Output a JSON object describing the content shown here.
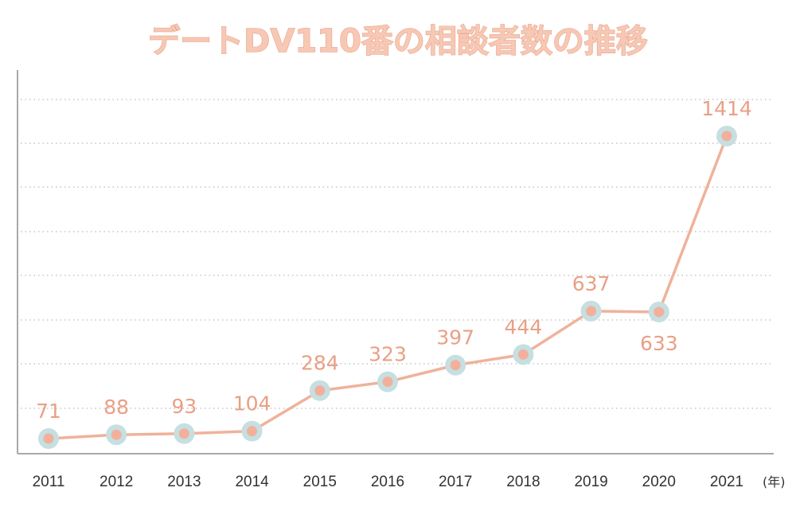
{
  "chart_data": {
    "type": "line",
    "title": "デートDV110番の相談者数の推移",
    "categories": [
      "2011",
      "2012",
      "2013",
      "2014",
      "2015",
      "2016",
      "2017",
      "2018",
      "2019",
      "2020",
      "2021"
    ],
    "values": [
      71,
      88,
      93,
      104,
      284,
      323,
      397,
      444,
      637,
      633,
      1414
    ],
    "x_unit_label": "(年)",
    "ylim": [
      0,
      1600
    ],
    "grid": true,
    "colors": {
      "line": "#efb29b",
      "point": "#f2b09c",
      "halo": "#c6dfe0",
      "data_label": "#e9a086",
      "title_fill": "#f7c8b4",
      "title_stroke": "#e9a58c"
    }
  }
}
